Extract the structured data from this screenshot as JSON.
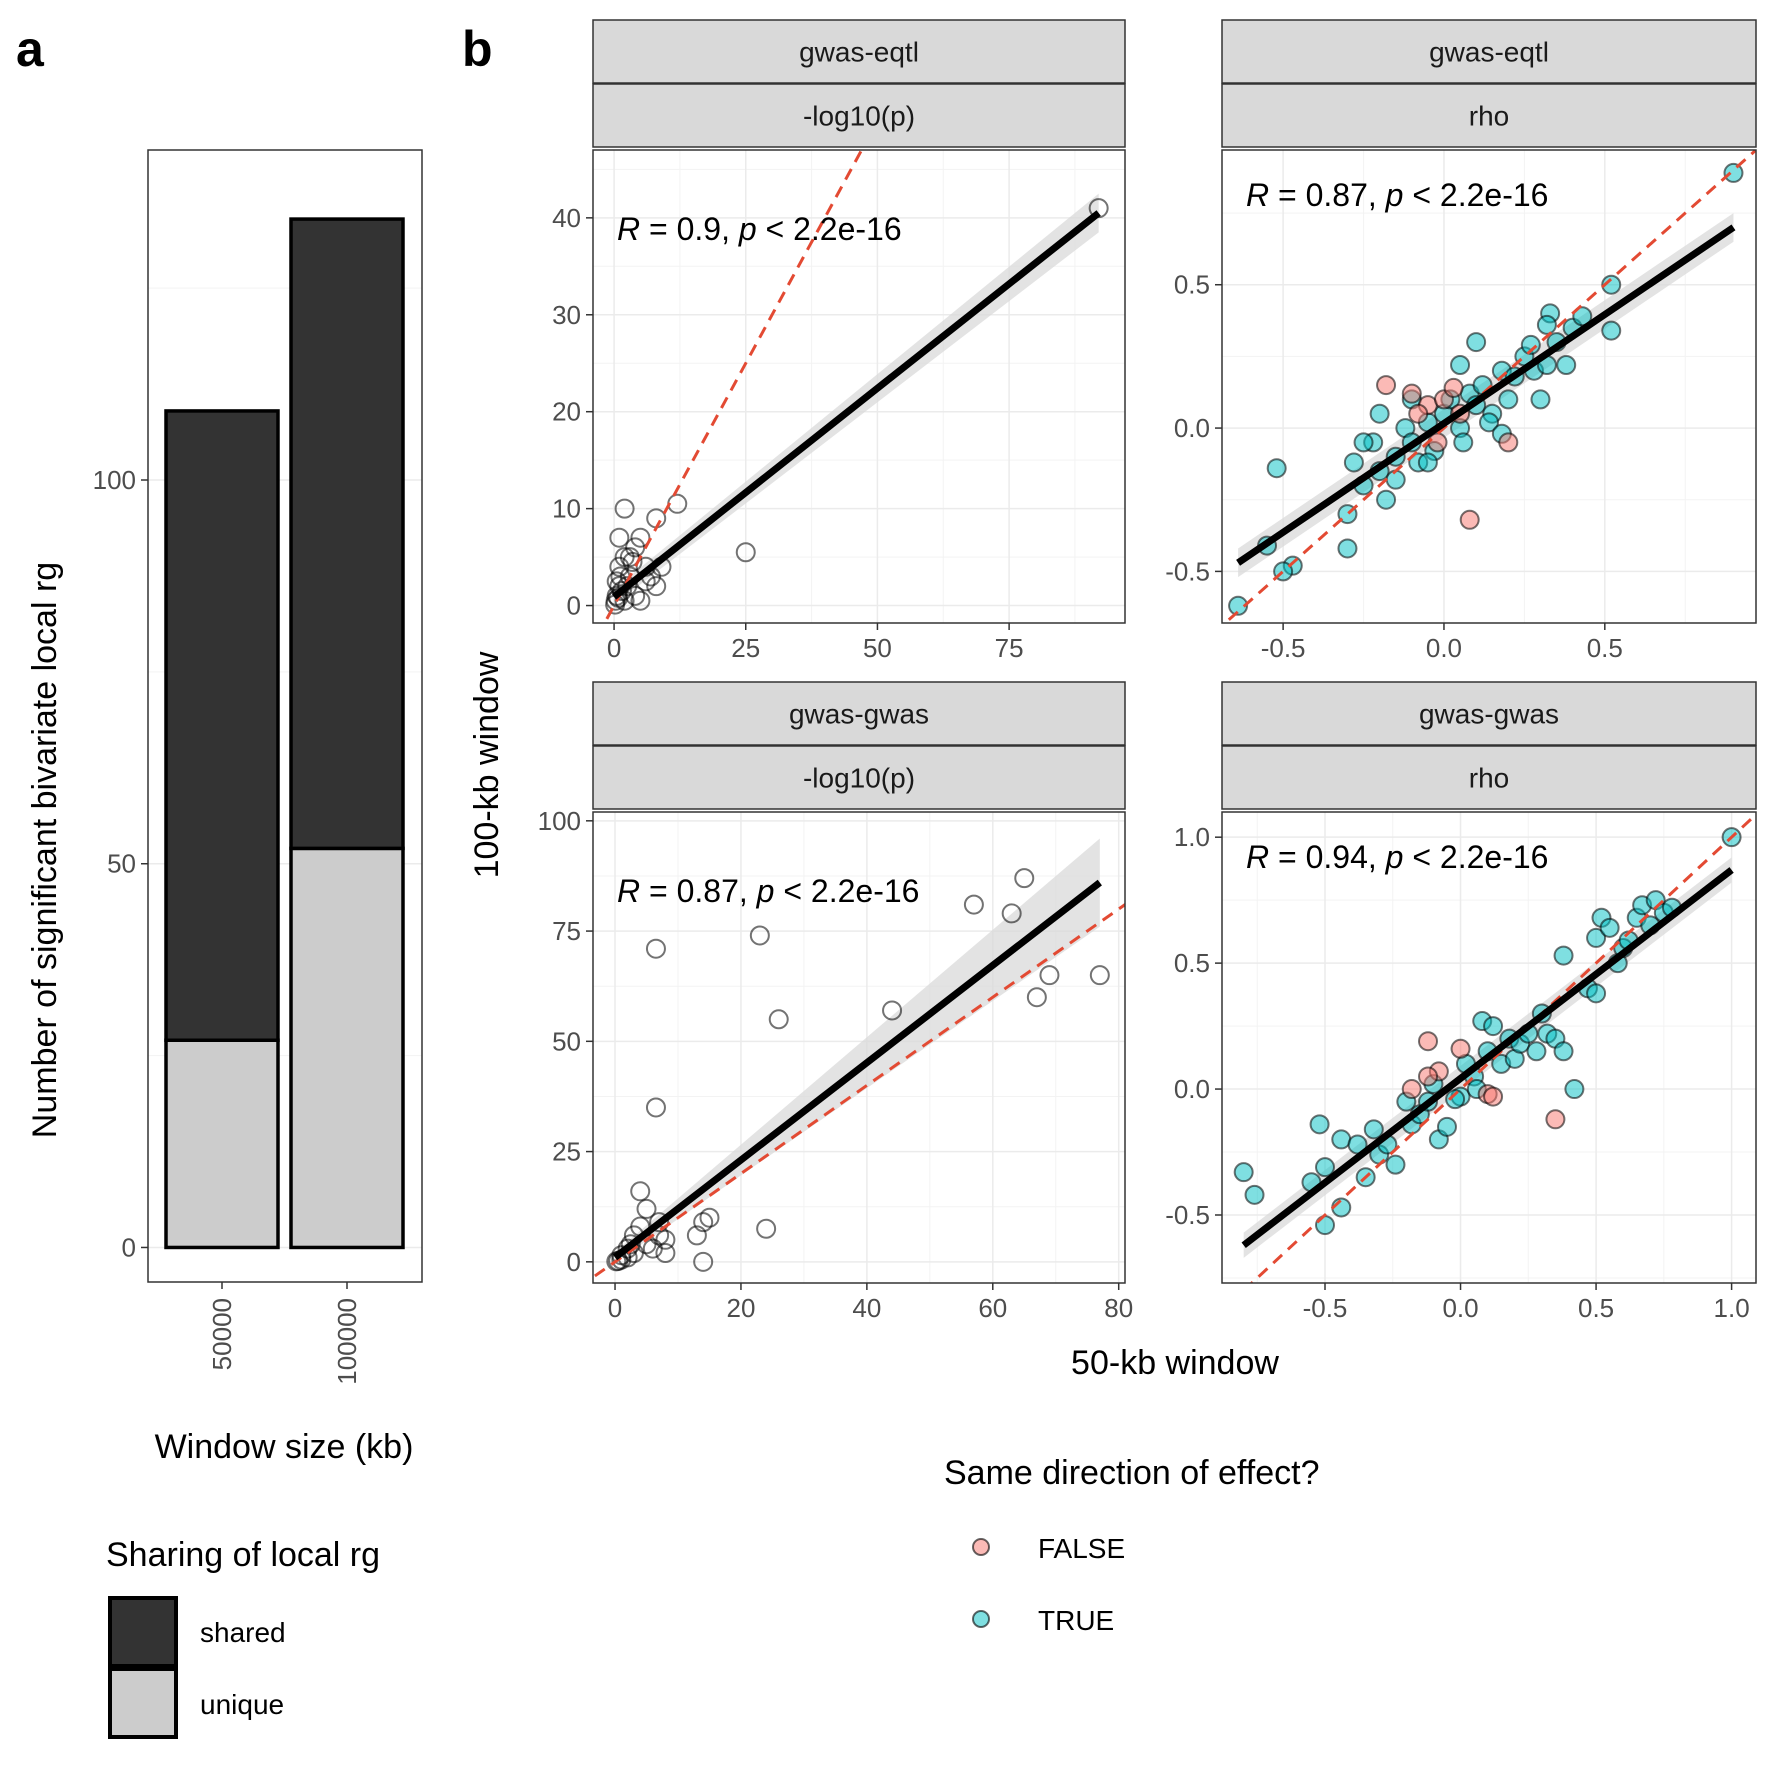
{
  "figure": {
    "panel_a_label": "a",
    "panel_b_label": "b",
    "panel_b_ylabel": "100-kb window",
    "panel_b_xlabel": "50-kb window"
  },
  "legend_sharing": {
    "title": "Sharing of local rg",
    "items": [
      {
        "label": "shared",
        "color": "#333333"
      },
      {
        "label": "unique",
        "color": "#cccccc"
      }
    ]
  },
  "legend_direction": {
    "title": "Same direction of effect?",
    "items": [
      {
        "label": "FALSE",
        "color": "#f8766d"
      },
      {
        "label": "TRUE",
        "color": "#00bfc4"
      }
    ]
  },
  "colors": {
    "shared": "#333333",
    "unique": "#cccccc",
    "false_point": "#f8766d",
    "true_point": "#00bfc4",
    "identity_line": "#e34a33",
    "fit_line": "#000000",
    "ci_band": "#d9d9d9",
    "strip_bg": "#d9d9d9",
    "grid_major": "#ebebeb"
  },
  "chart_data": [
    {
      "type": "bar",
      "panel": "a",
      "stacked": true,
      "xlabel": "Window size (kb)",
      "ylabel": "Number of significant bivariate local rg",
      "categories": [
        "50000",
        "100000"
      ],
      "series": [
        {
          "name": "unique",
          "values": [
            27,
            52
          ]
        },
        {
          "name": "shared",
          "values": [
            82,
            82
          ]
        }
      ],
      "ylim": [
        -4.5,
        143
      ],
      "yticks": [
        0,
        50,
        100
      ],
      "grid": true,
      "legend": "bottom-left"
    },
    {
      "type": "scatter",
      "panel": "b",
      "strip": [
        "gwas-eqtl",
        "-log10(p)"
      ],
      "annotation": {
        "r_text": "R",
        "rest": " = 0.9, ",
        "p_text": "p",
        "p_rest": " < 2.2e-16"
      },
      "xlim": [
        -4,
        97
      ],
      "ylim": [
        -1.8,
        47
      ],
      "xticks": [
        0,
        25,
        50,
        75
      ],
      "yticks": [
        0,
        10,
        20,
        30,
        40
      ],
      "identity_line": true,
      "fit": {
        "x0": 0,
        "y0": 0.9,
        "x1": 92,
        "y1": 40.5,
        "ci0": 0.8,
        "ci1": 2.0
      },
      "color_by_direction": false,
      "points": [
        [
          92,
          41
        ],
        [
          25,
          5.5
        ],
        [
          12,
          10.5
        ],
        [
          8,
          9
        ],
        [
          2,
          10
        ],
        [
          5,
          7
        ],
        [
          4,
          6
        ],
        [
          3,
          5
        ],
        [
          1,
          7
        ],
        [
          2,
          5
        ],
        [
          6,
          4
        ],
        [
          7,
          3
        ],
        [
          8,
          2
        ],
        [
          9,
          4
        ],
        [
          3,
          3
        ],
        [
          1,
          2
        ],
        [
          0.5,
          1
        ],
        [
          0.3,
          0.5
        ],
        [
          1.5,
          1.5
        ],
        [
          2.5,
          2
        ],
        [
          4,
          1
        ],
        [
          5,
          0.5
        ],
        [
          0.2,
          0.1
        ],
        [
          0.8,
          0.8
        ],
        [
          1.2,
          3
        ],
        [
          3.5,
          4.5
        ],
        [
          2,
          0.5
        ],
        [
          6,
          2.5
        ],
        [
          1,
          4
        ],
        [
          0.5,
          2.5
        ]
      ]
    },
    {
      "type": "scatter",
      "panel": "b",
      "strip": [
        "gwas-eqtl",
        "rho"
      ],
      "annotation": {
        "r_text": "R",
        "rest": " = 0.87, ",
        "p_text": "p",
        "p_rest": " < 2.2e-16"
      },
      "xlim": [
        -0.69,
        0.97
      ],
      "ylim": [
        -0.68,
        0.97
      ],
      "xticks": [
        -0.5,
        0.0,
        0.5
      ],
      "yticks": [
        -0.5,
        0.0,
        0.5
      ],
      "identity_line": true,
      "fit": {
        "x0": -0.64,
        "y0": -0.47,
        "x1": 0.9,
        "y1": 0.7,
        "ci0": 0.05,
        "ci1": 0.05
      },
      "color_by_direction": true,
      "points": [
        [
          0.9,
          0.89,
          "T"
        ],
        [
          -0.64,
          -0.62,
          "T"
        ],
        [
          -0.47,
          -0.48,
          "T"
        ],
        [
          -0.5,
          -0.5,
          "T"
        ],
        [
          -0.55,
          -0.41,
          "T"
        ],
        [
          -0.52,
          -0.14,
          "T"
        ],
        [
          -0.3,
          -0.42,
          "T"
        ],
        [
          -0.3,
          -0.3,
          "T"
        ],
        [
          -0.28,
          -0.12,
          "T"
        ],
        [
          -0.25,
          -0.2,
          "T"
        ],
        [
          -0.22,
          -0.05,
          "T"
        ],
        [
          -0.2,
          -0.15,
          "T"
        ],
        [
          -0.18,
          -0.25,
          "T"
        ],
        [
          -0.15,
          -0.1,
          "T"
        ],
        [
          -0.12,
          0.0,
          "T"
        ],
        [
          -0.1,
          -0.05,
          "T"
        ],
        [
          -0.08,
          -0.12,
          "T"
        ],
        [
          -0.05,
          0.02,
          "T"
        ],
        [
          -0.03,
          -0.08,
          "T"
        ],
        [
          0.0,
          0.05,
          "T"
        ],
        [
          0.02,
          0.1,
          "T"
        ],
        [
          0.05,
          0.0,
          "T"
        ],
        [
          0.08,
          0.12,
          "T"
        ],
        [
          0.1,
          0.08,
          "T"
        ],
        [
          0.12,
          0.15,
          "T"
        ],
        [
          0.15,
          0.05,
          "T"
        ],
        [
          0.18,
          0.2,
          "T"
        ],
        [
          0.2,
          0.1,
          "T"
        ],
        [
          0.22,
          0.18,
          "T"
        ],
        [
          0.25,
          0.25,
          "T"
        ],
        [
          0.28,
          0.2,
          "T"
        ],
        [
          0.3,
          0.1,
          "T"
        ],
        [
          0.32,
          0.22,
          "T"
        ],
        [
          0.33,
          0.4,
          "T"
        ],
        [
          0.35,
          0.3,
          "T"
        ],
        [
          0.38,
          0.22,
          "T"
        ],
        [
          0.4,
          0.35,
          "T"
        ],
        [
          0.52,
          0.5,
          "T"
        ],
        [
          0.52,
          0.34,
          "T"
        ],
        [
          0.43,
          0.39,
          "T"
        ],
        [
          0.32,
          0.36,
          "T"
        ],
        [
          0.27,
          0.29,
          "T"
        ],
        [
          0.1,
          0.3,
          "T"
        ],
        [
          0.05,
          0.22,
          "T"
        ],
        [
          -0.1,
          0.1,
          "T"
        ],
        [
          -0.2,
          0.05,
          "T"
        ],
        [
          -0.25,
          -0.05,
          "T"
        ],
        [
          -0.15,
          -0.18,
          "T"
        ],
        [
          -0.05,
          -0.12,
          "T"
        ],
        [
          0.06,
          -0.05,
          "T"
        ],
        [
          0.14,
          0.02,
          "T"
        ],
        [
          0.18,
          -0.02,
          "T"
        ],
        [
          -0.18,
          0.15,
          "F"
        ],
        [
          -0.1,
          0.12,
          "F"
        ],
        [
          -0.05,
          0.08,
          "F"
        ],
        [
          0.0,
          0.1,
          "F"
        ],
        [
          0.05,
          0.05,
          "F"
        ],
        [
          -0.08,
          0.05,
          "F"
        ],
        [
          0.08,
          -0.32,
          "F"
        ],
        [
          0.2,
          -0.05,
          "F"
        ],
        [
          -0.02,
          -0.05,
          "F"
        ],
        [
          0.03,
          0.14,
          "F"
        ]
      ]
    },
    {
      "type": "scatter",
      "panel": "b",
      "strip": [
        "gwas-gwas",
        "-log10(p)"
      ],
      "annotation": {
        "r_text": "R",
        "rest": " = 0.87, ",
        "p_text": "p",
        "p_rest": " < 2.2e-16"
      },
      "xlim": [
        -3.5,
        81
      ],
      "ylim": [
        -4.8,
        102
      ],
      "xticks": [
        0,
        20,
        40,
        60,
        80
      ],
      "yticks": [
        0,
        25,
        50,
        75,
        100
      ],
      "identity_line": true,
      "fit": {
        "x0": 0,
        "y0": 1,
        "x1": 77,
        "y1": 86,
        "ci0": 1.2,
        "ci1": 10
      },
      "color_by_direction": false,
      "points": [
        [
          77,
          65
        ],
        [
          65,
          87
        ],
        [
          63,
          79
        ],
        [
          57,
          81
        ],
        [
          69,
          65
        ],
        [
          67,
          60
        ],
        [
          44,
          57
        ],
        [
          26,
          55
        ],
        [
          23,
          74
        ],
        [
          24,
          7.5
        ],
        [
          6.5,
          71
        ],
        [
          6.5,
          35
        ],
        [
          14,
          0
        ],
        [
          14,
          9
        ],
        [
          13,
          6
        ],
        [
          15,
          10
        ],
        [
          4,
          16
        ],
        [
          5,
          12
        ],
        [
          7,
          9
        ],
        [
          8,
          5
        ],
        [
          6,
          3
        ],
        [
          3,
          2
        ],
        [
          2,
          1
        ],
        [
          1,
          0.5
        ],
        [
          0.5,
          0.2
        ],
        [
          3,
          6
        ],
        [
          5,
          4
        ],
        [
          2,
          3
        ],
        [
          1,
          1.5
        ],
        [
          4,
          8
        ],
        [
          7,
          6
        ],
        [
          8,
          2
        ],
        [
          2.5,
          4
        ],
        [
          0.2,
          0.1
        ]
      ]
    },
    {
      "type": "scatter",
      "panel": "b",
      "strip": [
        "gwas-gwas",
        "rho"
      ],
      "annotation": {
        "r_text": "R",
        "rest": " = 0.94, ",
        "p_text": "p",
        "p_rest": " < 2.2e-16"
      },
      "xlim": [
        -0.88,
        1.09
      ],
      "ylim": [
        -0.77,
        1.1
      ],
      "xticks": [
        -0.5,
        0.0,
        0.5,
        1.0
      ],
      "yticks": [
        -0.5,
        0.0,
        0.5,
        1.0
      ],
      "identity_line": true,
      "fit": {
        "x0": -0.8,
        "y0": -0.62,
        "x1": 1.0,
        "y1": 0.87,
        "ci0": 0.05,
        "ci1": 0.05
      },
      "color_by_direction": true,
      "points": [
        [
          1.0,
          1.0,
          "T"
        ],
        [
          -0.8,
          -0.33,
          "T"
        ],
        [
          -0.76,
          -0.42,
          "T"
        ],
        [
          -0.55,
          -0.37,
          "T"
        ],
        [
          -0.52,
          -0.14,
          "T"
        ],
        [
          -0.5,
          -0.54,
          "T"
        ],
        [
          -0.5,
          -0.31,
          "T"
        ],
        [
          -0.44,
          -0.47,
          "T"
        ],
        [
          -0.44,
          -0.2,
          "T"
        ],
        [
          -0.38,
          -0.22,
          "T"
        ],
        [
          -0.35,
          -0.35,
          "T"
        ],
        [
          -0.32,
          -0.16,
          "T"
        ],
        [
          -0.3,
          -0.26,
          "T"
        ],
        [
          -0.27,
          -0.22,
          "T"
        ],
        [
          -0.24,
          -0.3,
          "T"
        ],
        [
          -0.2,
          -0.05,
          "T"
        ],
        [
          -0.18,
          -0.14,
          "T"
        ],
        [
          -0.15,
          -0.1,
          "T"
        ],
        [
          -0.12,
          -0.05,
          "T"
        ],
        [
          -0.08,
          -0.2,
          "T"
        ],
        [
          -0.05,
          -0.15,
          "T"
        ],
        [
          0.0,
          -0.03,
          "T"
        ],
        [
          0.02,
          0.1,
          "T"
        ],
        [
          0.05,
          0.05,
          "T"
        ],
        [
          0.08,
          0.27,
          "T"
        ],
        [
          0.1,
          0.15,
          "T"
        ],
        [
          0.12,
          0.25,
          "T"
        ],
        [
          0.15,
          0.1,
          "T"
        ],
        [
          0.18,
          0.2,
          "T"
        ],
        [
          0.2,
          0.12,
          "T"
        ],
        [
          0.22,
          0.18,
          "T"
        ],
        [
          0.25,
          0.22,
          "T"
        ],
        [
          0.28,
          0.15,
          "T"
        ],
        [
          0.3,
          0.3,
          "T"
        ],
        [
          0.32,
          0.22,
          "T"
        ],
        [
          0.35,
          0.2,
          "T"
        ],
        [
          0.38,
          0.15,
          "T"
        ],
        [
          0.42,
          0.0,
          "T"
        ],
        [
          0.38,
          0.53,
          "T"
        ],
        [
          0.47,
          0.4,
          "T"
        ],
        [
          0.5,
          0.6,
          "T"
        ],
        [
          0.52,
          0.68,
          "T"
        ],
        [
          0.55,
          0.64,
          "T"
        ],
        [
          0.58,
          0.5,
          "T"
        ],
        [
          0.6,
          0.56,
          "T"
        ],
        [
          0.65,
          0.68,
          "T"
        ],
        [
          0.67,
          0.73,
          "T"
        ],
        [
          0.7,
          0.65,
          "T"
        ],
        [
          0.72,
          0.75,
          "T"
        ],
        [
          0.75,
          0.7,
          "T"
        ],
        [
          0.78,
          0.72,
          "T"
        ],
        [
          0.5,
          0.38,
          "T"
        ],
        [
          0.62,
          0.59,
          "T"
        ],
        [
          -0.1,
          0.02,
          "T"
        ],
        [
          -0.02,
          -0.04,
          "T"
        ],
        [
          0.06,
          0.0,
          "T"
        ],
        [
          -0.12,
          0.19,
          "F"
        ],
        [
          -0.08,
          0.07,
          "F"
        ],
        [
          0.0,
          0.16,
          "F"
        ],
        [
          0.1,
          -0.02,
          "F"
        ],
        [
          -0.12,
          0.05,
          "F"
        ],
        [
          0.35,
          -0.12,
          "F"
        ],
        [
          0.12,
          -0.03,
          "F"
        ],
        [
          -0.18,
          0.0,
          "F"
        ]
      ]
    }
  ]
}
